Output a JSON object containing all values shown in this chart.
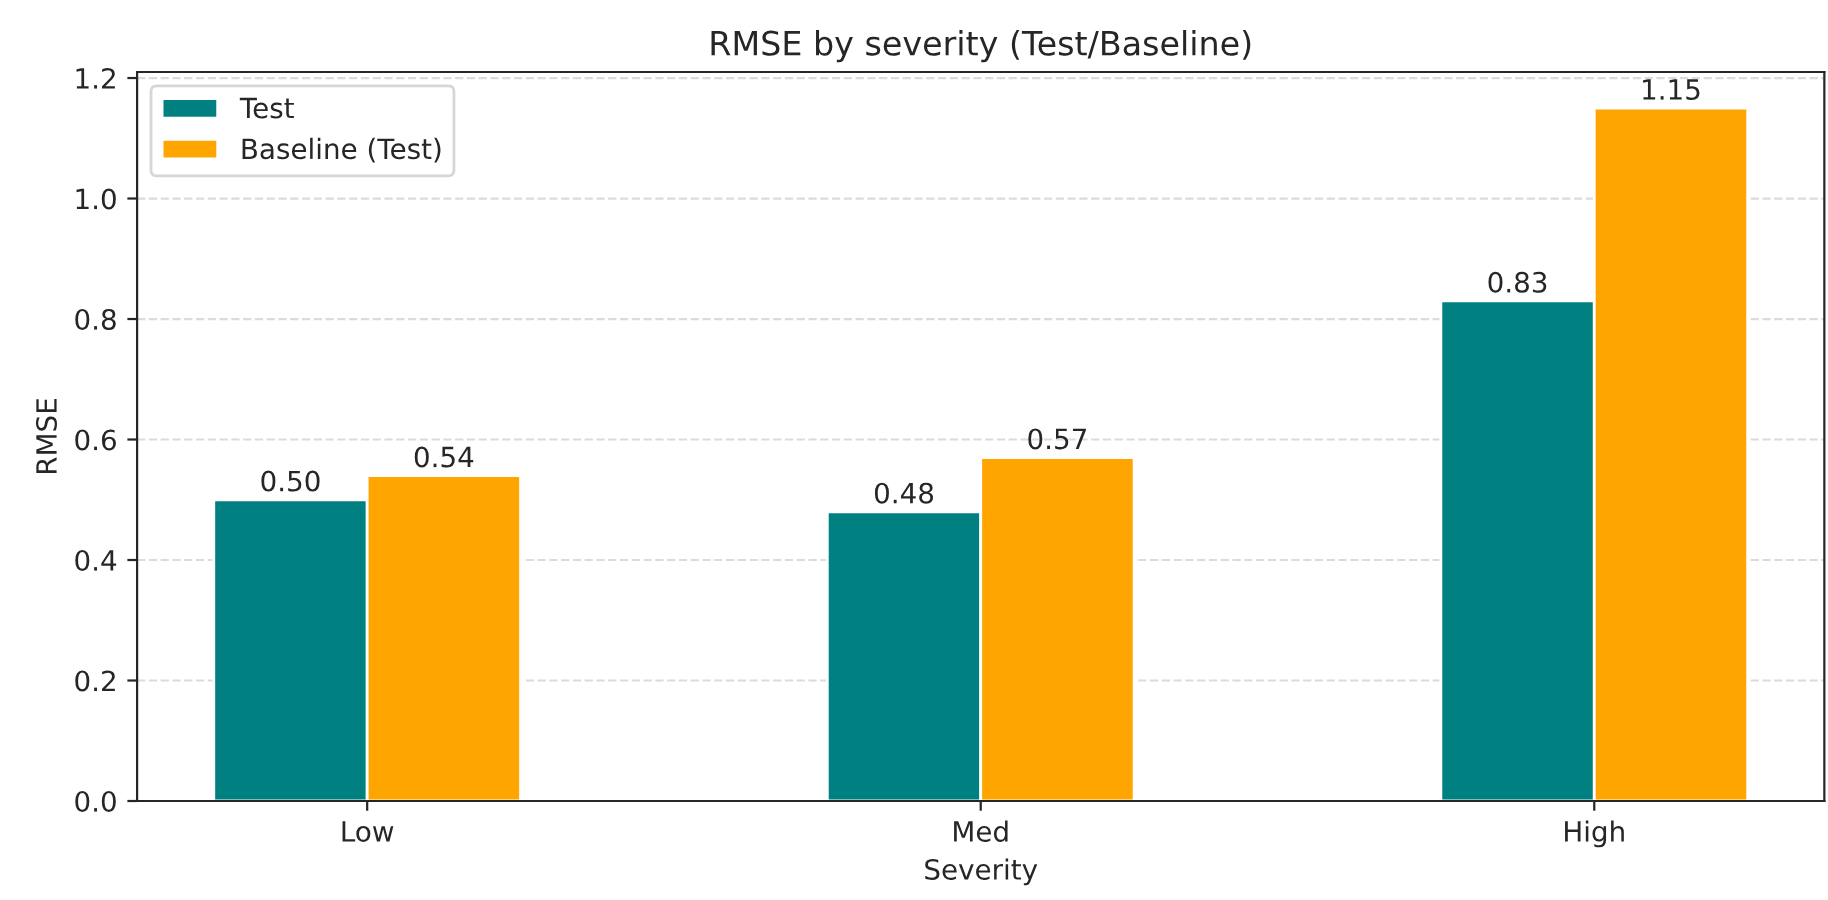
{
  "chart_data": {
    "type": "bar",
    "title": "RMSE by severity (Test/Baseline)",
    "xlabel": "Severity",
    "ylabel": "RMSE",
    "categories": [
      "Low",
      "Med",
      "High"
    ],
    "series": [
      {
        "name": "Test",
        "color": "#008080",
        "values": [
          0.5,
          0.48,
          0.83
        ],
        "value_labels": [
          "0.50",
          "0.48",
          "0.83"
        ]
      },
      {
        "name": "Baseline (Test)",
        "color": "#ffa500",
        "values": [
          0.54,
          0.57,
          1.15
        ],
        "value_labels": [
          "0.54",
          "0.57",
          "1.15"
        ]
      }
    ],
    "ylim": [
      0,
      1.21
    ],
    "yticks": [
      {
        "value": 0,
        "label": "0.0"
      },
      0.2,
      0.4,
      0.6,
      0.8,
      {
        "value": 1,
        "label": "1.0"
      },
      1.2
    ],
    "grid": "y",
    "legend": "top left"
  }
}
